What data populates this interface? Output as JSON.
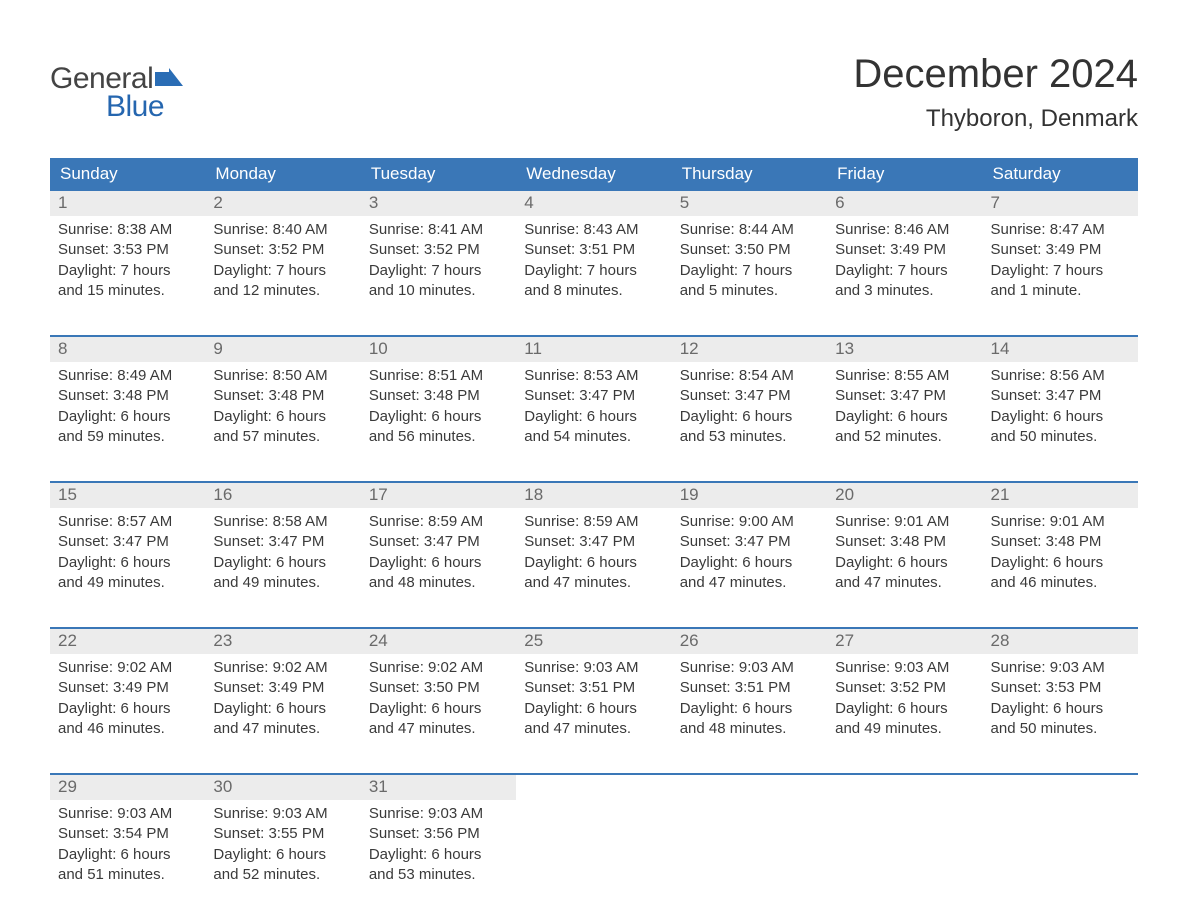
{
  "brand": {
    "word1": "General",
    "word2": "Blue",
    "word1_color": "#444444",
    "word2_color": "#2566af",
    "flag_color": "#2a6db5"
  },
  "title": "December 2024",
  "location": "Thyboron, Denmark",
  "colors": {
    "header_bg": "#3a77b7",
    "header_text": "#ffffff",
    "daynum_bg": "#ececec",
    "daynum_text": "#6a6a6a",
    "body_text": "#3a3a3a",
    "week_border": "#3a77b7",
    "page_bg": "#ffffff"
  },
  "fonts": {
    "title_size_pt": 30,
    "location_size_pt": 18,
    "header_size_pt": 13,
    "daynum_size_pt": 13,
    "body_size_pt": 11
  },
  "day_headers": [
    "Sunday",
    "Monday",
    "Tuesday",
    "Wednesday",
    "Thursday",
    "Friday",
    "Saturday"
  ],
  "weeks": [
    [
      {
        "n": "1",
        "sunrise": "Sunrise: 8:38 AM",
        "sunset": "Sunset: 3:53 PM",
        "d1": "Daylight: 7 hours",
        "d2": "and 15 minutes."
      },
      {
        "n": "2",
        "sunrise": "Sunrise: 8:40 AM",
        "sunset": "Sunset: 3:52 PM",
        "d1": "Daylight: 7 hours",
        "d2": "and 12 minutes."
      },
      {
        "n": "3",
        "sunrise": "Sunrise: 8:41 AM",
        "sunset": "Sunset: 3:52 PM",
        "d1": "Daylight: 7 hours",
        "d2": "and 10 minutes."
      },
      {
        "n": "4",
        "sunrise": "Sunrise: 8:43 AM",
        "sunset": "Sunset: 3:51 PM",
        "d1": "Daylight: 7 hours",
        "d2": "and 8 minutes."
      },
      {
        "n": "5",
        "sunrise": "Sunrise: 8:44 AM",
        "sunset": "Sunset: 3:50 PM",
        "d1": "Daylight: 7 hours",
        "d2": "and 5 minutes."
      },
      {
        "n": "6",
        "sunrise": "Sunrise: 8:46 AM",
        "sunset": "Sunset: 3:49 PM",
        "d1": "Daylight: 7 hours",
        "d2": "and 3 minutes."
      },
      {
        "n": "7",
        "sunrise": "Sunrise: 8:47 AM",
        "sunset": "Sunset: 3:49 PM",
        "d1": "Daylight: 7 hours",
        "d2": "and 1 minute."
      }
    ],
    [
      {
        "n": "8",
        "sunrise": "Sunrise: 8:49 AM",
        "sunset": "Sunset: 3:48 PM",
        "d1": "Daylight: 6 hours",
        "d2": "and 59 minutes."
      },
      {
        "n": "9",
        "sunrise": "Sunrise: 8:50 AM",
        "sunset": "Sunset: 3:48 PM",
        "d1": "Daylight: 6 hours",
        "d2": "and 57 minutes."
      },
      {
        "n": "10",
        "sunrise": "Sunrise: 8:51 AM",
        "sunset": "Sunset: 3:48 PM",
        "d1": "Daylight: 6 hours",
        "d2": "and 56 minutes."
      },
      {
        "n": "11",
        "sunrise": "Sunrise: 8:53 AM",
        "sunset": "Sunset: 3:47 PM",
        "d1": "Daylight: 6 hours",
        "d2": "and 54 minutes."
      },
      {
        "n": "12",
        "sunrise": "Sunrise: 8:54 AM",
        "sunset": "Sunset: 3:47 PM",
        "d1": "Daylight: 6 hours",
        "d2": "and 53 minutes."
      },
      {
        "n": "13",
        "sunrise": "Sunrise: 8:55 AM",
        "sunset": "Sunset: 3:47 PM",
        "d1": "Daylight: 6 hours",
        "d2": "and 52 minutes."
      },
      {
        "n": "14",
        "sunrise": "Sunrise: 8:56 AM",
        "sunset": "Sunset: 3:47 PM",
        "d1": "Daylight: 6 hours",
        "d2": "and 50 minutes."
      }
    ],
    [
      {
        "n": "15",
        "sunrise": "Sunrise: 8:57 AM",
        "sunset": "Sunset: 3:47 PM",
        "d1": "Daylight: 6 hours",
        "d2": "and 49 minutes."
      },
      {
        "n": "16",
        "sunrise": "Sunrise: 8:58 AM",
        "sunset": "Sunset: 3:47 PM",
        "d1": "Daylight: 6 hours",
        "d2": "and 49 minutes."
      },
      {
        "n": "17",
        "sunrise": "Sunrise: 8:59 AM",
        "sunset": "Sunset: 3:47 PM",
        "d1": "Daylight: 6 hours",
        "d2": "and 48 minutes."
      },
      {
        "n": "18",
        "sunrise": "Sunrise: 8:59 AM",
        "sunset": "Sunset: 3:47 PM",
        "d1": "Daylight: 6 hours",
        "d2": "and 47 minutes."
      },
      {
        "n": "19",
        "sunrise": "Sunrise: 9:00 AM",
        "sunset": "Sunset: 3:47 PM",
        "d1": "Daylight: 6 hours",
        "d2": "and 47 minutes."
      },
      {
        "n": "20",
        "sunrise": "Sunrise: 9:01 AM",
        "sunset": "Sunset: 3:48 PM",
        "d1": "Daylight: 6 hours",
        "d2": "and 47 minutes."
      },
      {
        "n": "21",
        "sunrise": "Sunrise: 9:01 AM",
        "sunset": "Sunset: 3:48 PM",
        "d1": "Daylight: 6 hours",
        "d2": "and 46 minutes."
      }
    ],
    [
      {
        "n": "22",
        "sunrise": "Sunrise: 9:02 AM",
        "sunset": "Sunset: 3:49 PM",
        "d1": "Daylight: 6 hours",
        "d2": "and 46 minutes."
      },
      {
        "n": "23",
        "sunrise": "Sunrise: 9:02 AM",
        "sunset": "Sunset: 3:49 PM",
        "d1": "Daylight: 6 hours",
        "d2": "and 47 minutes."
      },
      {
        "n": "24",
        "sunrise": "Sunrise: 9:02 AM",
        "sunset": "Sunset: 3:50 PM",
        "d1": "Daylight: 6 hours",
        "d2": "and 47 minutes."
      },
      {
        "n": "25",
        "sunrise": "Sunrise: 9:03 AM",
        "sunset": "Sunset: 3:51 PM",
        "d1": "Daylight: 6 hours",
        "d2": "and 47 minutes."
      },
      {
        "n": "26",
        "sunrise": "Sunrise: 9:03 AM",
        "sunset": "Sunset: 3:51 PM",
        "d1": "Daylight: 6 hours",
        "d2": "and 48 minutes."
      },
      {
        "n": "27",
        "sunrise": "Sunrise: 9:03 AM",
        "sunset": "Sunset: 3:52 PM",
        "d1": "Daylight: 6 hours",
        "d2": "and 49 minutes."
      },
      {
        "n": "28",
        "sunrise": "Sunrise: 9:03 AM",
        "sunset": "Sunset: 3:53 PM",
        "d1": "Daylight: 6 hours",
        "d2": "and 50 minutes."
      }
    ],
    [
      {
        "n": "29",
        "sunrise": "Sunrise: 9:03 AM",
        "sunset": "Sunset: 3:54 PM",
        "d1": "Daylight: 6 hours",
        "d2": "and 51 minutes."
      },
      {
        "n": "30",
        "sunrise": "Sunrise: 9:03 AM",
        "sunset": "Sunset: 3:55 PM",
        "d1": "Daylight: 6 hours",
        "d2": "and 52 minutes."
      },
      {
        "n": "31",
        "sunrise": "Sunrise: 9:03 AM",
        "sunset": "Sunset: 3:56 PM",
        "d1": "Daylight: 6 hours",
        "d2": "and 53 minutes."
      },
      null,
      null,
      null,
      null
    ]
  ]
}
